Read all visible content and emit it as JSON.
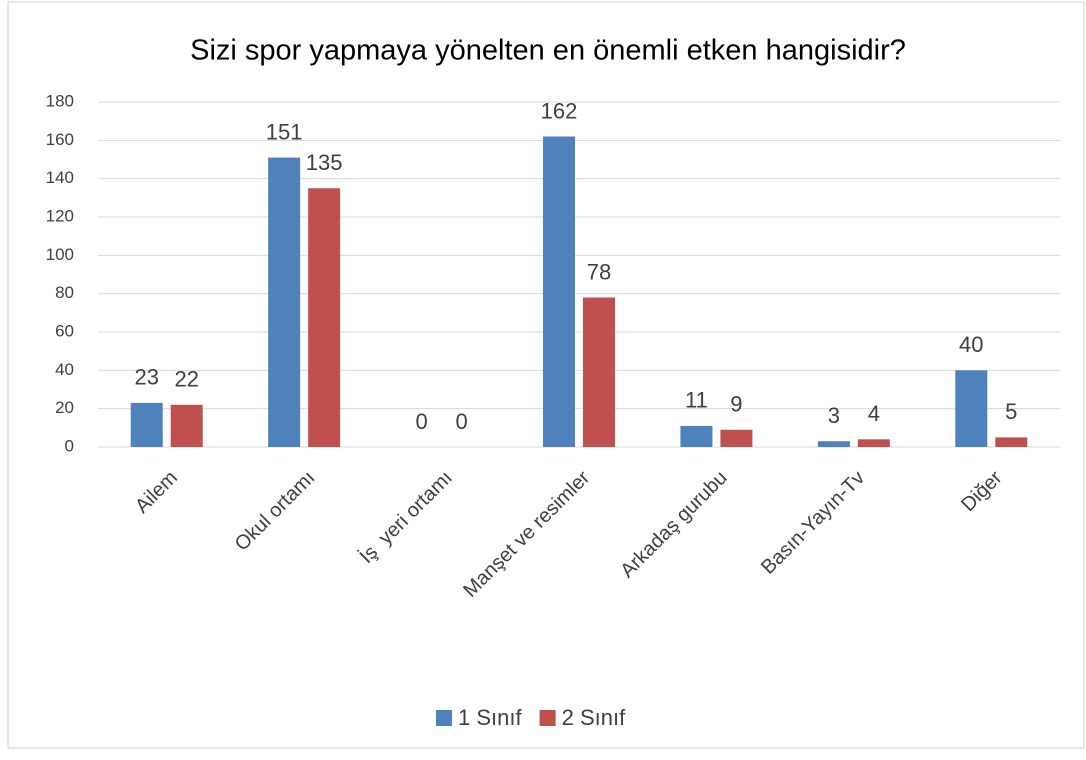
{
  "chart_data": {
    "type": "bar",
    "title": "Sizi spor yapmaya yönelten en önemli etken hangisidir?",
    "categories": [
      "Ailem",
      "Okul ortamı",
      "İş  yeri ortamı",
      "Manşet ve resimler",
      "Arkadaş gurubu",
      "Basın-Yayın-Tv",
      "Diğer"
    ],
    "series": [
      {
        "name": "1 Sınıf",
        "color": "#4f81bd",
        "values": [
          23,
          151,
          0,
          162,
          11,
          3,
          40
        ]
      },
      {
        "name": "2 Sınıf",
        "color": "#c0504d",
        "values": [
          22,
          135,
          0,
          78,
          9,
          4,
          5
        ]
      }
    ],
    "ylim": [
      0,
      180
    ],
    "yticks": [
      0,
      20,
      40,
      60,
      80,
      100,
      120,
      140,
      160,
      180
    ],
    "grid": true,
    "legend": "bottom"
  }
}
